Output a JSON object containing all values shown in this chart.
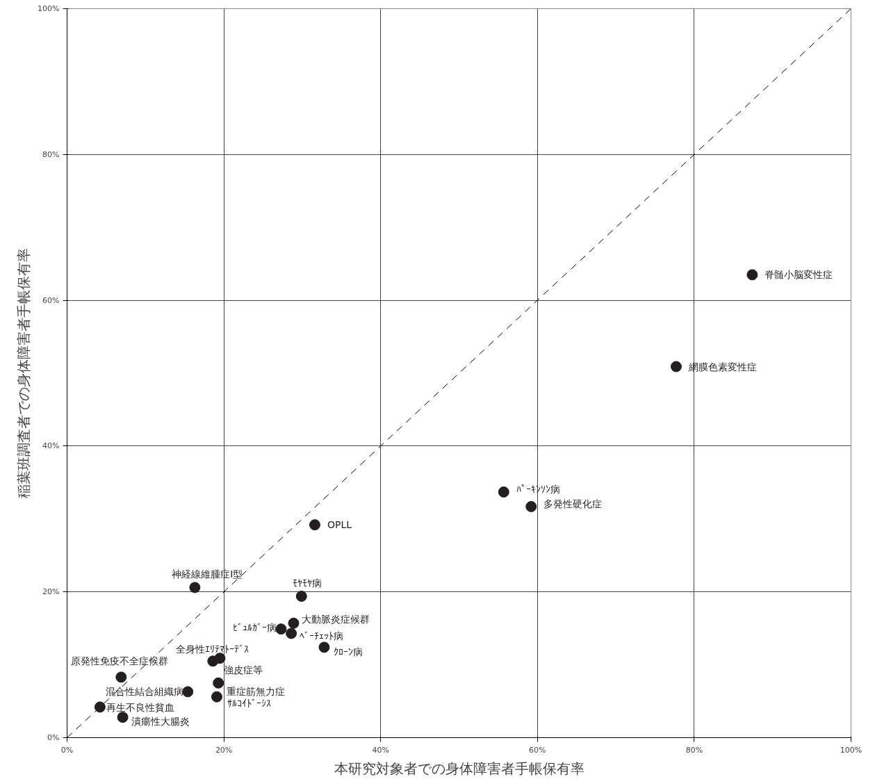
{
  "chart_data": {
    "type": "scatter",
    "xlabel": "本研究対象者での身体障害者手帳保有率",
    "ylabel": "稲葉班調査者での身体障害者手帳保有率",
    "xlim": [
      0,
      100
    ],
    "ylim": [
      0,
      100
    ],
    "xticks": [
      {
        "value": 0,
        "label": "0%"
      },
      {
        "value": 20,
        "label": "20%"
      },
      {
        "value": 40,
        "label": "40%"
      },
      {
        "value": 60,
        "label": "60%"
      },
      {
        "value": 80,
        "label": "80%"
      },
      {
        "value": 100,
        "label": "100%"
      }
    ],
    "yticks": [
      {
        "value": 0,
        "label": "0%"
      },
      {
        "value": 20,
        "label": "20%"
      },
      {
        "value": 40,
        "label": "40%"
      },
      {
        "value": 60,
        "label": "60%"
      },
      {
        "value": 80,
        "label": "80%"
      },
      {
        "value": 100,
        "label": "100%"
      }
    ],
    "grid": true,
    "marker": "circle",
    "series": [
      {
        "type": "line",
        "x": [
          0,
          100
        ],
        "values": [
          0,
          100
        ],
        "color": "#000000",
        "line_style": "dashed",
        "marker": "none"
      },
      {
        "name": "脊髄小脳変性症",
        "x": [
          87.4
        ],
        "values": [
          63.5
        ],
        "color": "#231f20"
      },
      {
        "name": "網膜色素変性症",
        "x": [
          77.7
        ],
        "values": [
          50.9
        ],
        "color": "#231f20"
      },
      {
        "name": "ﾊﾟｰｷﾝｿﾝ病",
        "x": [
          55.7
        ],
        "values": [
          33.7
        ],
        "color": "#231f20"
      },
      {
        "name": "多発性硬化症",
        "x": [
          59.2
        ],
        "values": [
          31.7
        ],
        "color": "#231f20"
      },
      {
        "name": "OPLL",
        "x": [
          31.6
        ],
        "values": [
          29.2
        ],
        "color": "#231f20"
      },
      {
        "name": "神経線維腫症Ⅰ型",
        "x": [
          16.3
        ],
        "values": [
          20.6
        ],
        "color": "#231f20"
      },
      {
        "name": "ﾓﾔﾓﾔ病",
        "x": [
          29.9
        ],
        "values": [
          19.4
        ],
        "color": "#231f20"
      },
      {
        "name": "大動脈炎症候群",
        "x": [
          28.9
        ],
        "values": [
          15.7
        ],
        "color": "#231f20"
      },
      {
        "name": "ﾋﾞｭﾙｶﾞｰ病",
        "x": [
          27.3
        ],
        "values": [
          14.9
        ],
        "color": "#231f20"
      },
      {
        "name": "ﾍﾞｰﾁｪｯﾄ病",
        "x": [
          28.6
        ],
        "values": [
          14.3
        ],
        "color": "#231f20"
      },
      {
        "name": "ｸﾛｰﾝ病",
        "x": [
          32.8
        ],
        "values": [
          12.4
        ],
        "color": "#231f20"
      },
      {
        "name": "全身性ｴﾘﾃﾏﾄｰﾃﾞｽ",
        "x": [
          18.6
        ],
        "values": [
          10.5
        ],
        "color": "#231f20"
      },
      {
        "name": "強皮症等",
        "x": [
          19.5
        ],
        "values": [
          10.9
        ],
        "color": "#231f20"
      },
      {
        "name": "重症筋無力症",
        "x": [
          19.3
        ],
        "values": [
          7.5
        ],
        "color": "#231f20"
      },
      {
        "name": "ｻﾙｺｲﾄﾞｰｼｽ",
        "x": [
          19.1
        ],
        "values": [
          5.6
        ],
        "color": "#231f20"
      },
      {
        "name": "原発性免疫不全症候群",
        "x": [
          6.9
        ],
        "values": [
          8.3
        ],
        "color": "#231f20"
      },
      {
        "name": "混合性結合組織病",
        "x": [
          15.4
        ],
        "values": [
          6.3
        ],
        "color": "#231f20"
      },
      {
        "name": "再生不良性貧血",
        "x": [
          4.2
        ],
        "values": [
          4.2
        ],
        "color": "#231f20"
      },
      {
        "name": "潰瘍性大腸炎",
        "x": [
          7.1
        ],
        "values": [
          2.8
        ],
        "color": "#231f20"
      }
    ]
  }
}
